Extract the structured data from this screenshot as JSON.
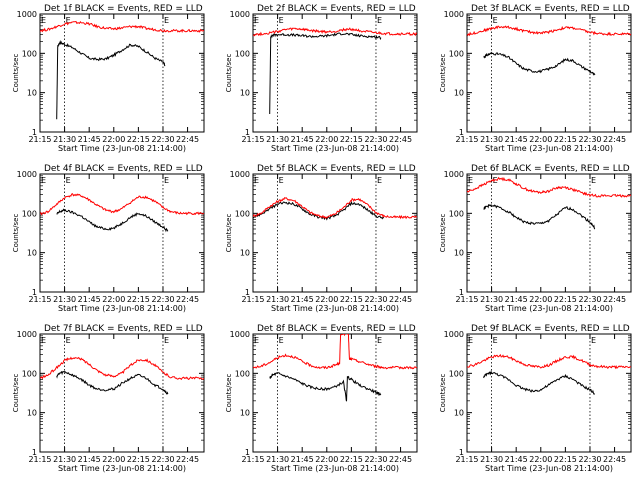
{
  "figure": {
    "xlabel": "Start Time (23-Jun-08 21:14:00)",
    "ylabel": "Counts/sec",
    "xticks": [
      "21:15",
      "21:30",
      "21:45",
      "22:00",
      "22:15",
      "22:30",
      "22:45"
    ],
    "yticks": [
      "1",
      "10",
      "100",
      "1000"
    ],
    "marker_label": "E",
    "colors": {
      "events": "#000000",
      "lld": "#ff0000",
      "axis": "#000000"
    }
  },
  "chart_data": [
    {
      "type": "line",
      "title": "Det 1f BLACK = Events, RED = LLD",
      "xlabel": "Start Time (23-Jun-08 21:14:00)",
      "ylabel": "Counts/sec",
      "xlim": [
        21.25,
        22.917
      ],
      "ylim": [
        1,
        1000
      ],
      "yscale": "log",
      "event_lines": [
        21.5,
        22.5
      ],
      "series": [
        {
          "name": "Events",
          "color": "#000000",
          "x": [
            21.42,
            21.43,
            21.45,
            21.5,
            21.58,
            21.67,
            21.75,
            21.83,
            21.92,
            22.0,
            22.08,
            22.17,
            22.25,
            22.33,
            22.42,
            22.5,
            22.52
          ],
          "y": [
            2,
            150,
            190,
            170,
            140,
            100,
            75,
            70,
            72,
            90,
            120,
            165,
            150,
            110,
            75,
            60,
            50
          ]
        },
        {
          "name": "LLD",
          "color": "#ff0000",
          "x": [
            21.25,
            21.33,
            21.42,
            21.5,
            21.58,
            21.67,
            21.75,
            21.83,
            21.92,
            22.0,
            22.08,
            22.17,
            22.25,
            22.33,
            22.42,
            22.5,
            22.58,
            22.67,
            22.75,
            22.83,
            22.917
          ],
          "y": [
            380,
            400,
            480,
            560,
            610,
            600,
            560,
            480,
            430,
            420,
            440,
            480,
            480,
            430,
            400,
            380,
            375,
            375,
            375,
            375,
            375
          ]
        }
      ]
    },
    {
      "type": "line",
      "title": "Det 2f BLACK = Events, RED = LLD",
      "xlabel": "Start Time (23-Jun-08 21:14:00)",
      "ylabel": "Counts/sec",
      "xlim": [
        21.25,
        22.917
      ],
      "ylim": [
        1,
        1000
      ],
      "yscale": "log",
      "event_lines": [
        21.5,
        22.5
      ],
      "series": [
        {
          "name": "Events",
          "color": "#000000",
          "x": [
            21.42,
            21.43,
            21.45,
            21.5,
            21.58,
            21.67,
            21.75,
            21.83,
            21.92,
            22.0,
            22.08,
            22.17,
            22.25,
            22.33,
            22.42,
            22.5,
            22.55
          ],
          "y": [
            3,
            260,
            290,
            300,
            300,
            290,
            280,
            270,
            270,
            280,
            300,
            320,
            300,
            280,
            270,
            260,
            250
          ]
        },
        {
          "name": "LLD",
          "color": "#ff0000",
          "x": [
            21.25,
            21.33,
            21.42,
            21.5,
            21.58,
            21.67,
            21.75,
            21.83,
            21.92,
            22.0,
            22.08,
            22.17,
            22.25,
            22.33,
            22.42,
            22.5,
            22.58,
            22.67,
            22.75,
            22.83,
            22.917
          ],
          "y": [
            300,
            310,
            330,
            360,
            400,
            420,
            410,
            380,
            360,
            350,
            360,
            400,
            410,
            380,
            350,
            330,
            320,
            310,
            310,
            310,
            310
          ]
        }
      ]
    },
    {
      "type": "line",
      "title": "Det 3f BLACK = Events, RED = LLD",
      "xlabel": "Start Time (23-Jun-08 21:14:00)",
      "ylabel": "Counts/sec",
      "xlim": [
        21.25,
        22.917
      ],
      "ylim": [
        1,
        1000
      ],
      "yscale": "log",
      "event_lines": [
        21.5,
        22.5
      ],
      "series": [
        {
          "name": "Events",
          "color": "#000000",
          "x": [
            21.42,
            21.45,
            21.5,
            21.58,
            21.67,
            21.75,
            21.83,
            21.92,
            22.0,
            22.08,
            22.17,
            22.25,
            22.33,
            22.42,
            22.5,
            22.55
          ],
          "y": [
            80,
            90,
            100,
            95,
            80,
            55,
            40,
            35,
            35,
            40,
            50,
            70,
            65,
            45,
            35,
            28
          ]
        },
        {
          "name": "LLD",
          "color": "#ff0000",
          "x": [
            21.25,
            21.33,
            21.42,
            21.5,
            21.58,
            21.67,
            21.75,
            21.83,
            21.92,
            22.0,
            22.08,
            22.17,
            22.25,
            22.33,
            22.42,
            22.5,
            22.58,
            22.67,
            22.75,
            22.83,
            22.917
          ],
          "y": [
            300,
            330,
            380,
            430,
            470,
            460,
            420,
            370,
            340,
            330,
            350,
            400,
            450,
            440,
            390,
            340,
            320,
            310,
            310,
            310,
            310
          ]
        }
      ]
    },
    {
      "type": "line",
      "title": "Det 4f BLACK = Events, RED = LLD",
      "xlabel": "Start Time (23-Jun-08 21:14:00)",
      "ylabel": "Counts/sec",
      "xlim": [
        21.25,
        22.917
      ],
      "ylim": [
        1,
        1000
      ],
      "yscale": "log",
      "event_lines": [
        21.5,
        22.5
      ],
      "series": [
        {
          "name": "Events",
          "color": "#000000",
          "x": [
            21.42,
            21.45,
            21.5,
            21.58,
            21.67,
            21.75,
            21.83,
            21.92,
            22.0,
            22.08,
            22.17,
            22.25,
            22.33,
            22.42,
            22.5,
            22.55
          ],
          "y": [
            95,
            110,
            120,
            105,
            85,
            60,
            45,
            40,
            42,
            55,
            80,
            100,
            85,
            60,
            45,
            35
          ]
        },
        {
          "name": "LLD",
          "color": "#ff0000",
          "x": [
            21.25,
            21.33,
            21.42,
            21.5,
            21.58,
            21.67,
            21.75,
            21.83,
            21.92,
            22.0,
            22.08,
            22.17,
            22.25,
            22.33,
            22.42,
            22.5,
            22.58,
            22.67,
            22.75,
            22.83,
            22.917
          ],
          "y": [
            95,
            110,
            170,
            250,
            300,
            280,
            220,
            160,
            120,
            110,
            130,
            190,
            260,
            260,
            200,
            140,
            110,
            100,
            100,
            100,
            100
          ]
        }
      ]
    },
    {
      "type": "line",
      "title": "Det 5f BLACK = Events, RED = LLD",
      "xlabel": "Start Time (23-Jun-08 21:14:00)",
      "ylabel": "Counts/sec",
      "xlim": [
        21.25,
        22.917
      ],
      "ylim": [
        1,
        1000
      ],
      "yscale": "log",
      "event_lines": [
        21.5,
        22.5
      ],
      "series": [
        {
          "name": "Events",
          "color": "#000000",
          "x": [
            21.25,
            21.33,
            21.42,
            21.5,
            21.58,
            21.67,
            21.75,
            21.83,
            21.92,
            22.0,
            22.08,
            22.17,
            22.25,
            22.33,
            22.42,
            22.5,
            22.58
          ],
          "y": [
            80,
            95,
            130,
            170,
            190,
            170,
            130,
            95,
            80,
            75,
            85,
            120,
            180,
            170,
            120,
            85,
            75
          ]
        },
        {
          "name": "LLD",
          "color": "#ff0000",
          "x": [
            21.25,
            21.33,
            21.42,
            21.5,
            21.58,
            21.67,
            21.75,
            21.83,
            21.92,
            22.0,
            22.08,
            22.17,
            22.25,
            22.33,
            22.42,
            22.5,
            22.58,
            22.67,
            22.75,
            22.83,
            22.917
          ],
          "y": [
            85,
            100,
            150,
            200,
            240,
            210,
            150,
            105,
            85,
            80,
            95,
            140,
            220,
            230,
            160,
            105,
            85,
            80,
            80,
            80,
            80
          ]
        }
      ]
    },
    {
      "type": "line",
      "title": "Det 6f BLACK = Events, RED = LLD",
      "xlabel": "Start Time (23-Jun-08 21:14:00)",
      "ylabel": "Counts/sec",
      "xlim": [
        21.25,
        22.917
      ],
      "ylim": [
        1,
        1000
      ],
      "yscale": "log",
      "event_lines": [
        21.5,
        22.5
      ],
      "series": [
        {
          "name": "Events",
          "color": "#000000",
          "x": [
            21.42,
            21.45,
            21.5,
            21.58,
            21.67,
            21.75,
            21.83,
            21.92,
            22.0,
            22.08,
            22.17,
            22.25,
            22.33,
            22.42,
            22.5,
            22.55
          ],
          "y": [
            130,
            150,
            160,
            140,
            110,
            80,
            60,
            55,
            55,
            65,
            95,
            140,
            125,
            85,
            60,
            42
          ]
        },
        {
          "name": "LLD",
          "color": "#ff0000",
          "x": [
            21.25,
            21.33,
            21.42,
            21.5,
            21.58,
            21.67,
            21.75,
            21.83,
            21.92,
            22.0,
            22.08,
            22.17,
            22.25,
            22.33,
            22.42,
            22.5,
            22.58,
            22.67,
            22.75,
            22.83,
            22.917
          ],
          "y": [
            350,
            420,
            540,
            680,
            760,
            720,
            560,
            430,
            360,
            340,
            370,
            450,
            460,
            400,
            330,
            290,
            280,
            280,
            280,
            280,
            280
          ]
        }
      ]
    },
    {
      "type": "line",
      "title": "Det 7f BLACK = Events, RED = LLD",
      "xlabel": "Start Time (23-Jun-08 21:14:00)",
      "ylabel": "Counts/sec",
      "xlim": [
        21.25,
        22.917
      ],
      "ylim": [
        1,
        1000
      ],
      "yscale": "log",
      "event_lines": [
        21.5,
        22.5
      ],
      "series": [
        {
          "name": "Events",
          "color": "#000000",
          "x": [
            21.42,
            21.45,
            21.5,
            21.58,
            21.67,
            21.75,
            21.83,
            21.92,
            22.0,
            22.08,
            22.17,
            22.25,
            22.33,
            22.42,
            22.5,
            22.55
          ],
          "y": [
            85,
            100,
            110,
            90,
            70,
            50,
            40,
            38,
            40,
            55,
            75,
            90,
            75,
            50,
            40,
            30
          ]
        },
        {
          "name": "LLD",
          "color": "#ff0000",
          "x": [
            21.25,
            21.33,
            21.42,
            21.5,
            21.58,
            21.67,
            21.75,
            21.83,
            21.92,
            22.0,
            22.08,
            22.17,
            22.25,
            22.33,
            22.42,
            22.5,
            22.58,
            22.67,
            22.75,
            22.83,
            22.917
          ],
          "y": [
            75,
            90,
            140,
            210,
            250,
            230,
            170,
            120,
            90,
            85,
            100,
            160,
            220,
            220,
            160,
            105,
            80,
            75,
            75,
            75,
            75
          ]
        }
      ]
    },
    {
      "type": "line",
      "title": "Det 8f BLACK = Events, RED = LLD",
      "xlabel": "Start Time (23-Jun-08 21:14:00)",
      "ylabel": "Counts/sec",
      "xlim": [
        21.25,
        22.917
      ],
      "ylim": [
        1,
        1000
      ],
      "yscale": "log",
      "event_lines": [
        21.5,
        22.5
      ],
      "series": [
        {
          "name": "Events",
          "color": "#000000",
          "x": [
            21.42,
            21.45,
            21.5,
            21.58,
            21.67,
            21.75,
            21.83,
            21.92,
            22.0,
            22.08,
            22.17,
            22.2,
            22.21,
            22.25,
            22.33,
            22.42,
            22.5,
            22.55
          ],
          "y": [
            75,
            90,
            100,
            85,
            70,
            55,
            45,
            40,
            40,
            45,
            60,
            20,
            80,
            70,
            50,
            40,
            33,
            28
          ]
        },
        {
          "name": "LLD",
          "color": "#ff0000",
          "x": [
            21.25,
            21.33,
            21.42,
            21.5,
            21.58,
            21.67,
            21.75,
            21.83,
            21.92,
            22.0,
            22.08,
            22.13,
            22.14,
            22.22,
            22.23,
            22.25,
            22.33,
            22.42,
            22.5,
            22.58,
            22.67,
            22.75,
            22.83,
            22.917
          ],
          "y": [
            140,
            150,
            190,
            250,
            290,
            260,
            200,
            160,
            140,
            140,
            160,
            180,
            1000,
            1000,
            230,
            230,
            200,
            170,
            150,
            140,
            140,
            140,
            140,
            140
          ]
        }
      ]
    },
    {
      "type": "line",
      "title": "Det 9f BLACK = Events, RED = LLD",
      "xlabel": "Start Time (23-Jun-08 21:14:00)",
      "ylabel": "Counts/sec",
      "xlim": [
        21.25,
        22.917
      ],
      "ylim": [
        1,
        1000
      ],
      "yscale": "log",
      "event_lines": [
        21.5,
        22.5
      ],
      "series": [
        {
          "name": "Events",
          "color": "#000000",
          "x": [
            21.42,
            21.45,
            21.5,
            21.58,
            21.67,
            21.75,
            21.83,
            21.92,
            22.0,
            22.08,
            22.17,
            22.25,
            22.33,
            22.42,
            22.5,
            22.55
          ],
          "y": [
            80,
            95,
            105,
            90,
            70,
            50,
            40,
            35,
            38,
            50,
            70,
            85,
            70,
            48,
            38,
            30
          ]
        },
        {
          "name": "LLD",
          "color": "#ff0000",
          "x": [
            21.25,
            21.33,
            21.42,
            21.5,
            21.58,
            21.67,
            21.75,
            21.83,
            21.92,
            22.0,
            22.08,
            22.17,
            22.25,
            22.33,
            22.42,
            22.5,
            22.58,
            22.67,
            22.75,
            22.83,
            22.917
          ],
          "y": [
            150,
            165,
            210,
            260,
            280,
            260,
            210,
            170,
            150,
            145,
            160,
            210,
            260,
            260,
            210,
            165,
            150,
            145,
            145,
            145,
            145
          ]
        }
      ]
    }
  ]
}
